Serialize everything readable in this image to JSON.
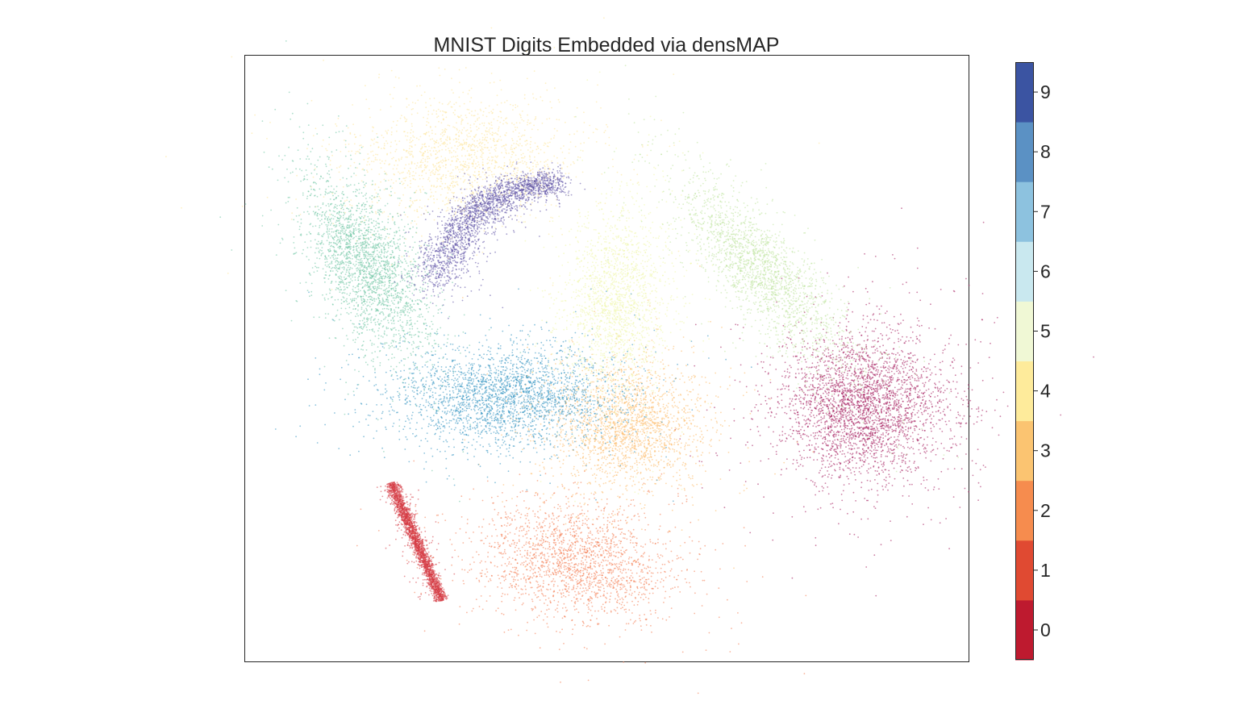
{
  "chart_data": {
    "type": "scatter",
    "title": "MNIST Digits Embedded via densMAP",
    "xlabel": "",
    "ylabel": "",
    "axes_visible": false,
    "grid": false,
    "legend": "colorbar-right",
    "xlim": [
      0,
      100
    ],
    "ylim": [
      0,
      100
    ],
    "colormap": "Spectral",
    "colorbar": {
      "ticks": [
        "0",
        "1",
        "2",
        "3",
        "4",
        "5",
        "6",
        "7",
        "8",
        "9"
      ],
      "colors": [
        "#be1a2f",
        "#e04a32",
        "#f68c4e",
        "#fbc471",
        "#feeb9b",
        "#f0f8d5",
        "#c9e8ef",
        "#8dc2df",
        "#5b91c4",
        "#3b54a2"
      ]
    },
    "series": [
      {
        "label": "0",
        "color": "#a3165a",
        "shape": "blob",
        "n": 3200,
        "cx": 85.5,
        "cy": 42.2,
        "sx": 5.8,
        "sy": 6.0,
        "angle": -10
      },
      {
        "label": "1",
        "color": "#d53a43",
        "shape": "line",
        "n": 2400,
        "x1": 20.2,
        "y1": 29.5,
        "x2": 27.1,
        "y2": 10.4,
        "width": 0.45
      },
      {
        "label": "2",
        "color": "#f47a4e",
        "shape": "blob",
        "n": 2000,
        "cx": 45.8,
        "cy": 16.4,
        "sx": 6.9,
        "sy": 4.6,
        "angle": -10
      },
      {
        "label": "3",
        "color": "#fdb863",
        "shape": "blob",
        "n": 2000,
        "cx": 52.6,
        "cy": 38.9,
        "sx": 5.5,
        "sy": 5.3,
        "angle": 0
      },
      {
        "label": "4",
        "color": "#fde396",
        "shape": "blob",
        "n": 1600,
        "cx": 30.1,
        "cy": 83.1,
        "sx": 8.0,
        "sy": 5.1,
        "angle": 5
      },
      {
        "label": "5",
        "color": "#eef6a6",
        "shape": "blob",
        "n": 1800,
        "cx": 51.3,
        "cy": 59.8,
        "sx": 3.6,
        "sy": 7.5,
        "angle": -5
      },
      {
        "label": "6",
        "color": "#bee39c",
        "shape": "blob",
        "n": 2000,
        "cx": 71.4,
        "cy": 64.5,
        "sx": 2.9,
        "sy": 9.4,
        "angle": 35
      },
      {
        "label": "7",
        "color": "#6dc4a2",
        "shape": "blob",
        "n": 2400,
        "cx": 16.7,
        "cy": 65.2,
        "sx": 3.3,
        "sy": 7.7,
        "angle": 20
      },
      {
        "label": "8",
        "color": "#2c90c0",
        "shape": "blob",
        "n": 2600,
        "cx": 35.9,
        "cy": 43.8,
        "sx": 7.7,
        "sy": 4.1,
        "angle": 0
      },
      {
        "label": "9",
        "color": "#5b4ea4",
        "shape": "arc",
        "n": 2200,
        "x1": 26.1,
        "y1": 62.4,
        "cx": 30.8,
        "cy": 79.3,
        "x2": 43.4,
        "y2": 78.7,
        "width": 2.3
      }
    ]
  }
}
